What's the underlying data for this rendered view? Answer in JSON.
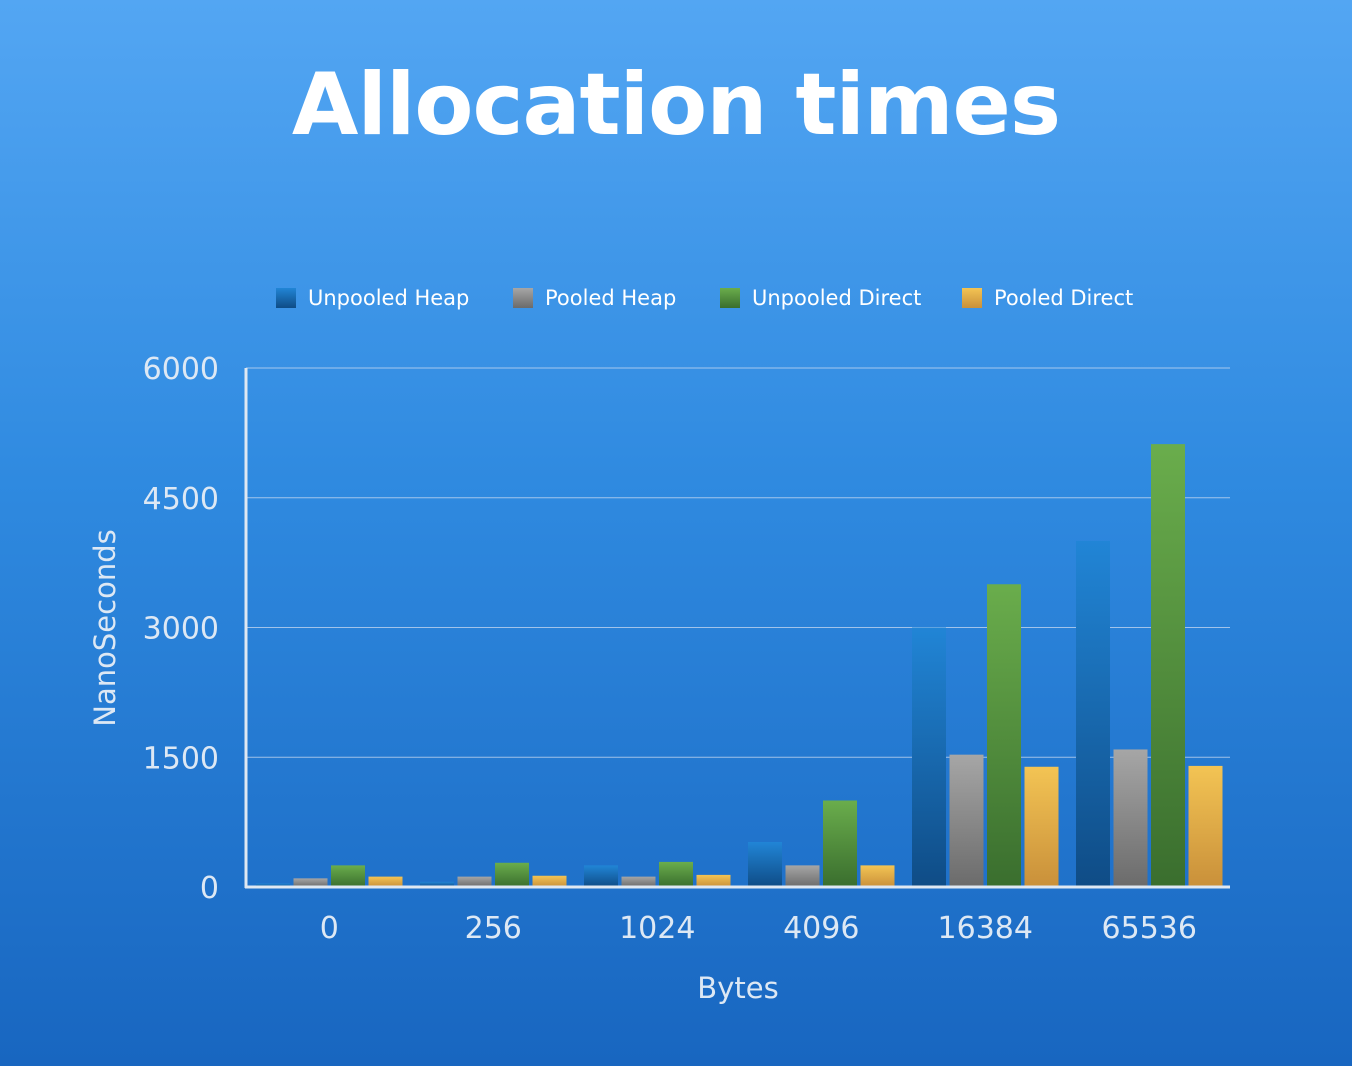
{
  "title": "Allocation times",
  "colors": {
    "Unpooled Heap": [
      "#2185d6",
      "#0f4c86"
    ],
    "Pooled Heap": [
      "#a6a6a6",
      "#6b6b6b"
    ],
    "Unpooled Direct": [
      "#6aad4c",
      "#3a6e2e"
    ],
    "Pooled Direct": [
      "#f3c454",
      "#c9903a"
    ],
    "grid": "#c9daf0",
    "axis": "#dfe8f2"
  },
  "chart_data": {
    "type": "bar",
    "title": "Allocation times",
    "xlabel": "Bytes",
    "ylabel": "NanoSeconds",
    "ylim": [
      0,
      6000
    ],
    "yticks": [
      "0",
      "1500",
      "3000",
      "4500",
      "6000"
    ],
    "grid": true,
    "legend_position": "top",
    "categories": [
      "0",
      "256",
      "1024",
      "4096",
      "16384",
      "65536"
    ],
    "series": [
      {
        "name": "Unpooled Heap",
        "values": [
          40,
          60,
          250,
          520,
          3000,
          4000
        ]
      },
      {
        "name": "Pooled Heap",
        "values": [
          100,
          120,
          120,
          250,
          1530,
          1590
        ]
      },
      {
        "name": "Unpooled Direct",
        "values": [
          250,
          280,
          290,
          1000,
          3500,
          5120
        ]
      },
      {
        "name": "Pooled Direct",
        "values": [
          120,
          130,
          140,
          250,
          1390,
          1400
        ]
      }
    ]
  }
}
